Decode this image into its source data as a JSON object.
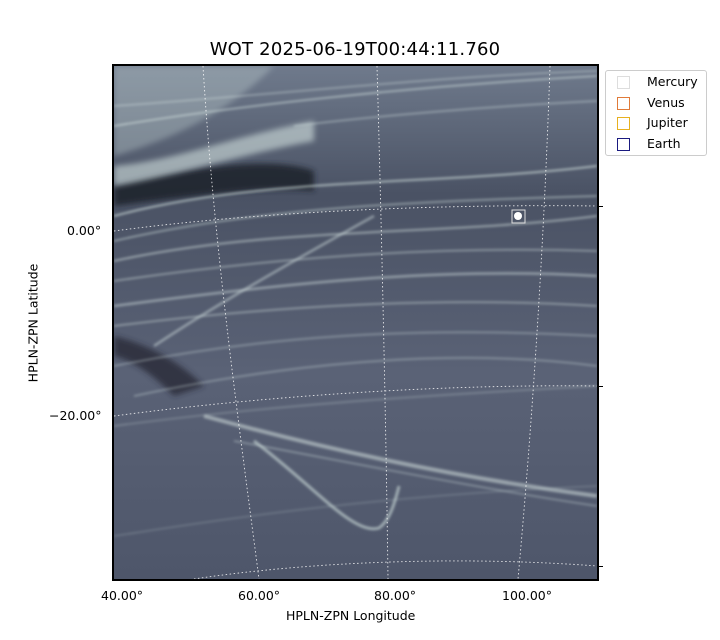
{
  "title": "WOT 2025-06-19T00:44:11.760",
  "xlabel": "HPLN-ZPN Longitude",
  "ylabel": "HPLN-ZPN Latitude",
  "x_ticks": [
    "40.00°",
    "60.00°",
    "80.00°",
    "100.00°"
  ],
  "y_ticks": [
    "0.00°",
    "−20.00°"
  ],
  "legend": [
    {
      "label": "Mercury",
      "color": "#dddddd"
    },
    {
      "label": "Venus",
      "color": "#e07b39"
    },
    {
      "label": "Jupiter",
      "color": "#e8b020"
    },
    {
      "label": "Earth",
      "color": "#1a1a80"
    }
  ],
  "image": {
    "description_colors": {
      "background": "#5b6478",
      "streak": "#dfeeea",
      "dark_band": "#1a1e28"
    },
    "grid": "dotted white coordinate grid"
  }
}
